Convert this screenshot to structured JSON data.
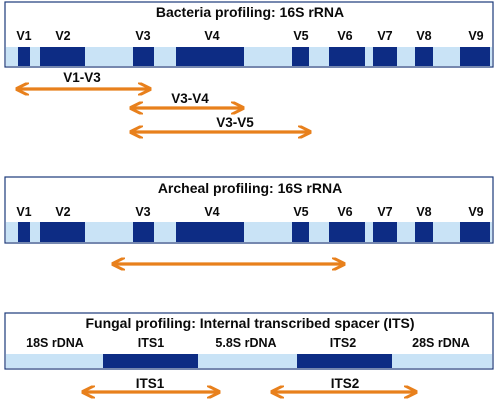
{
  "colors": {
    "dark_segment": "#0d2c84",
    "light_segment": "#c9e3f6",
    "frame": "#1c3a7a",
    "arrow": "#e8801c"
  },
  "panels": [
    {
      "title": "Bacteria profiling: 16S rRNA",
      "regions": [
        "V1",
        "V2",
        "V3",
        "V4",
        "V5",
        "V6",
        "V7",
        "V8",
        "V9"
      ],
      "arrows": [
        {
          "label": "V1-V3"
        },
        {
          "label": "V3-V4"
        },
        {
          "label": "V3-V5"
        }
      ]
    },
    {
      "title": "Archeal profiling: 16S rRNA",
      "regions": [
        "V1",
        "V2",
        "V3",
        "V4",
        "V5",
        "V6",
        "V7",
        "V8",
        "V9"
      ],
      "arrows": [
        {
          "label": ""
        }
      ]
    },
    {
      "title": "Fungal profiling: Internal transcribed spacer (ITS)",
      "regions": [
        "18S rDNA",
        "ITS1",
        "5.8S rDNA",
        "ITS2",
        "28S rDNA"
      ],
      "arrows": [
        {
          "label": "ITS1"
        },
        {
          "label": "ITS2"
        }
      ]
    }
  ]
}
